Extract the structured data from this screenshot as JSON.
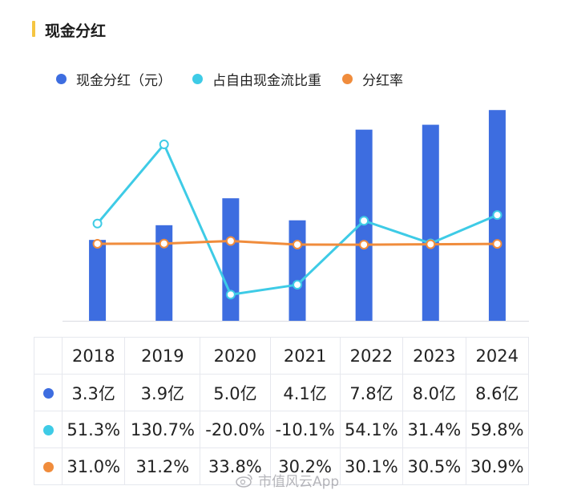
{
  "title": "现金分红",
  "legend": [
    {
      "label": "现金分红（元）",
      "color": "#3d6de0"
    },
    {
      "label": "占自由现金流比重",
      "color": "#3ecbe6"
    },
    {
      "label": "分红率",
      "color": "#f08c3c"
    }
  ],
  "chart_data": {
    "type": "bar+line",
    "title": "现金分红",
    "categories": [
      "2018",
      "2019",
      "2020",
      "2021",
      "2022",
      "2023",
      "2024"
    ],
    "series": [
      {
        "name": "现金分红（元）",
        "kind": "bar",
        "unit": "亿",
        "values": [
          3.3,
          3.9,
          5.0,
          4.1,
          7.8,
          8.0,
          8.6
        ]
      },
      {
        "name": "占自由现金流比重",
        "kind": "line",
        "unit": "%",
        "values": [
          51.3,
          130.7,
          -20.0,
          -10.1,
          54.1,
          31.4,
          59.8
        ]
      },
      {
        "name": "分红率",
        "kind": "line",
        "unit": "%",
        "values": [
          31.0,
          31.2,
          33.8,
          30.2,
          30.1,
          30.5,
          30.9
        ]
      }
    ],
    "bar_ylim": [
      0,
      9
    ],
    "line_ylim": [
      -35,
      175
    ],
    "grid": false,
    "legend_position": "top"
  },
  "table": {
    "years": [
      "2018",
      "2019",
      "2020",
      "2021",
      "2022",
      "2023",
      "2024"
    ],
    "rows": [
      {
        "color": "#3d6de0",
        "cells": [
          "3.3亿",
          "3.9亿",
          "5.0亿",
          "4.1亿",
          "7.8亿",
          "8.0亿",
          "8.6亿"
        ]
      },
      {
        "color": "#3ecbe6",
        "cells": [
          "51.3%",
          "130.7%",
          "-20.0%",
          "-10.1%",
          "54.1%",
          "31.4%",
          "59.8%"
        ]
      },
      {
        "color": "#f08c3c",
        "cells": [
          "31.0%",
          "31.2%",
          "33.8%",
          "30.2%",
          "30.1%",
          "30.5%",
          "30.9%"
        ]
      }
    ]
  },
  "watermark": "市值风云App"
}
